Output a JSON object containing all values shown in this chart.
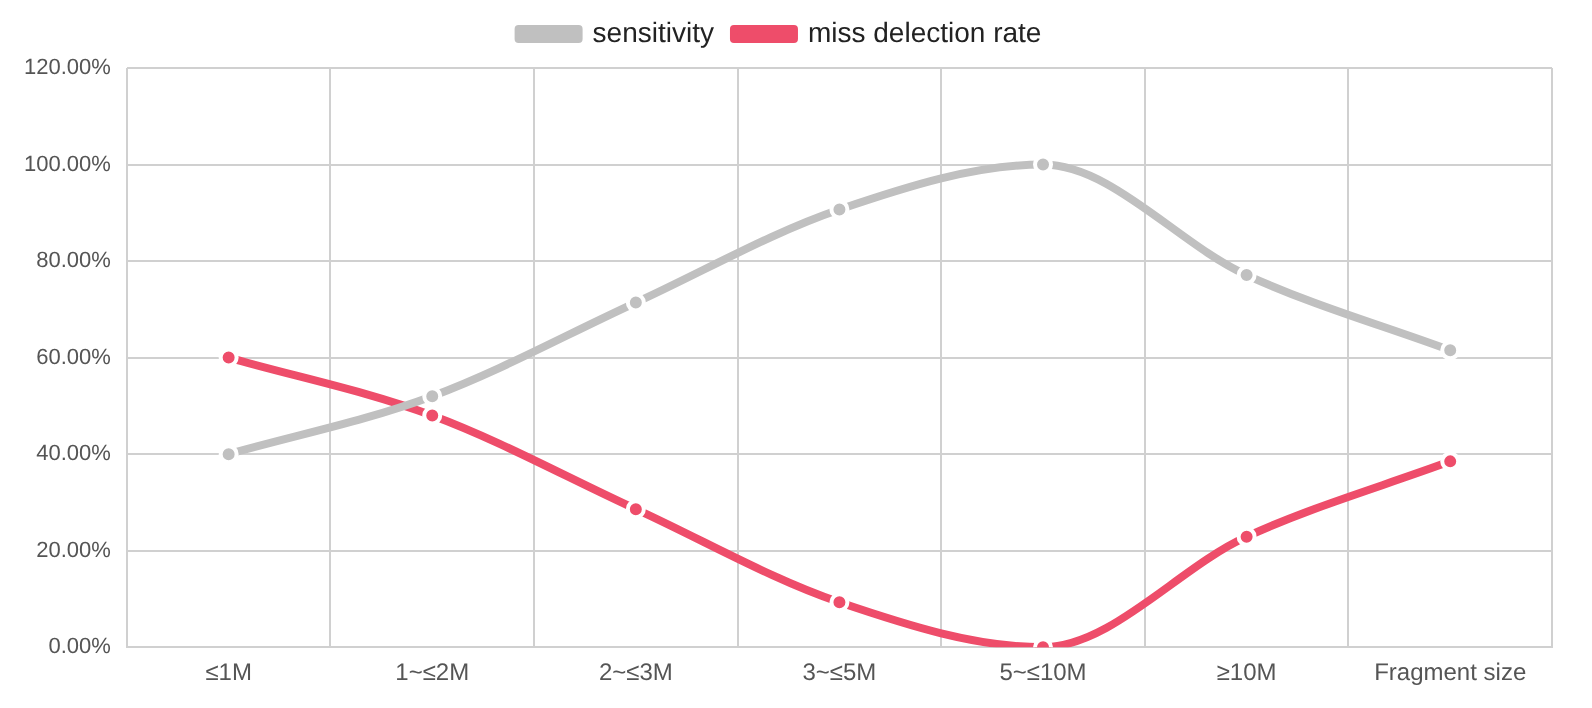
{
  "chart_data": {
    "type": "line",
    "categories": [
      "≤1M",
      "1~≤2M",
      "2~≤3M",
      "3~≤5M",
      "5~≤10M",
      "≥10M",
      "Fragment size"
    ],
    "series": [
      {
        "name": "sensitivity",
        "color": "#c0c0c0",
        "values": [
          40,
          52,
          71.4,
          90.7,
          100,
          77.1,
          61.5
        ]
      },
      {
        "name": "miss delection rate",
        "color": "#ee4d6a",
        "values": [
          60,
          48,
          28.6,
          9.3,
          0,
          22.9,
          38.5
        ]
      }
    ],
    "ylim": [
      0,
      120
    ],
    "yticks": [
      {
        "value": 0,
        "label": "0.00%"
      },
      {
        "value": 20,
        "label": "20.00%"
      },
      {
        "value": 40,
        "label": "40.00%"
      },
      {
        "value": 60,
        "label": "60.00%"
      },
      {
        "value": 80,
        "label": "80.00%"
      },
      {
        "value": 100,
        "label": "100.00%"
      },
      {
        "value": 120,
        "label": "120.00%"
      }
    ],
    "grid": true,
    "legend": "top",
    "marker": "circle",
    "line_style": "solid"
  }
}
